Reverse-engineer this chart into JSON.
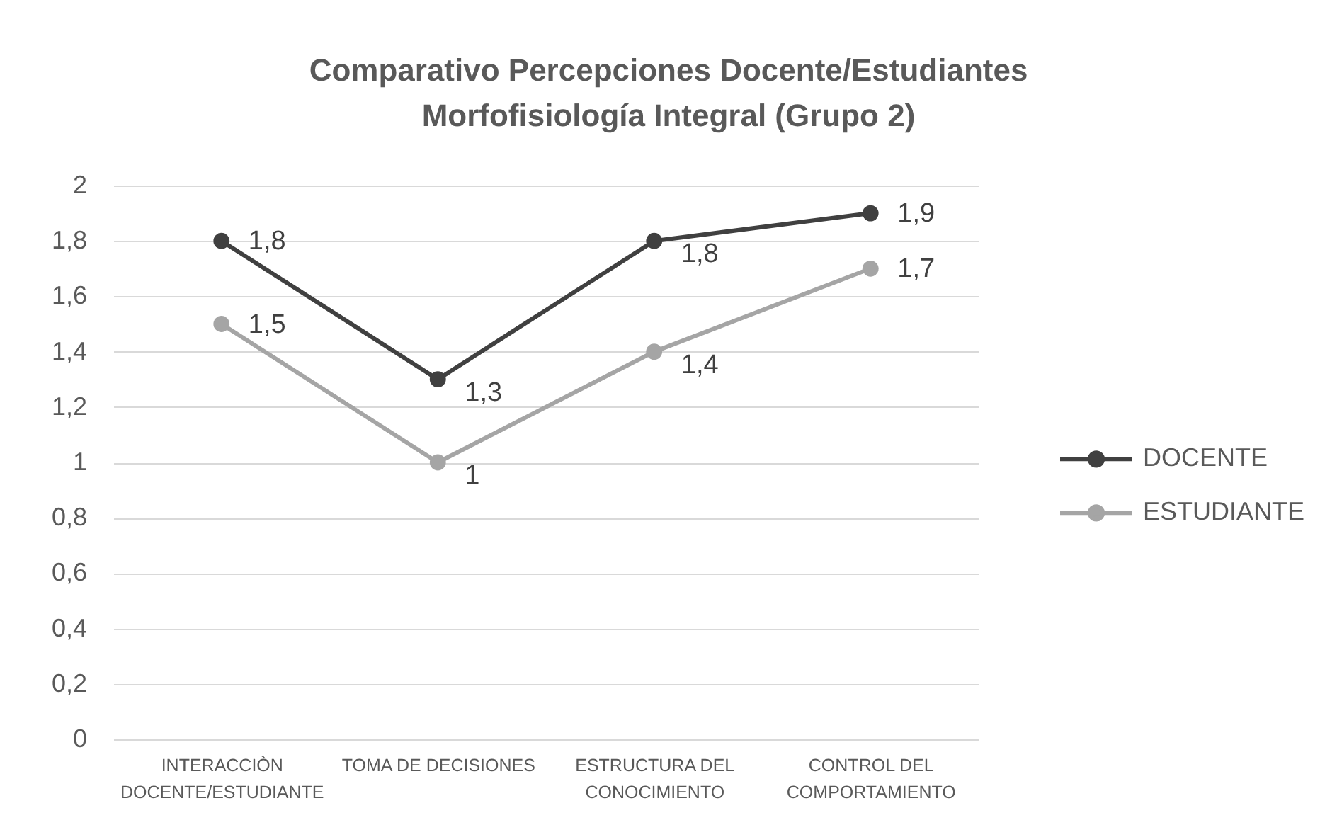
{
  "chart_data": {
    "type": "line",
    "title": "Comparativo Percepciones Docente/Estudiantes Morfofisiología Integral (Grupo 2)",
    "categories": [
      "INTERACCIÒN DOCENTE/ESTUDIANTE",
      "TOMA DE DECISIONES",
      "ESTRUCTURA DEL CONOCIMIENTO",
      "CONTROL DEL COMPORTAMIENTO"
    ],
    "series": [
      {
        "name": "DOCENTE",
        "color": "#404040",
        "values": [
          1.8,
          1.3,
          1.8,
          1.9
        ],
        "value_labels": [
          "1,8",
          "1,3",
          "1,8",
          "1,9"
        ]
      },
      {
        "name": "ESTUDIANTE",
        "color": "#a5a5a5",
        "values": [
          1.5,
          1,
          1.4,
          1.7
        ],
        "value_labels": [
          "1,5",
          "1",
          "1,4",
          "1,7"
        ]
      }
    ],
    "ylim": [
      0,
      2
    ],
    "yticks": [
      0,
      {
        "value": 0.2,
        "label": "0,2"
      },
      {
        "value": 0.4,
        "label": "0,4"
      },
      {
        "value": 0.6,
        "label": "0,6"
      },
      {
        "value": 0.8,
        "label": "0,8"
      },
      1,
      {
        "value": 1.2,
        "label": "1,2"
      },
      {
        "value": 1.4,
        "label": "1,4"
      },
      {
        "value": 1.6,
        "label": "1,6"
      },
      {
        "value": 1.8,
        "label": "1,8"
      },
      2
    ],
    "grid": "y",
    "legend": "right",
    "marker": "circle",
    "line_style": "solid"
  }
}
